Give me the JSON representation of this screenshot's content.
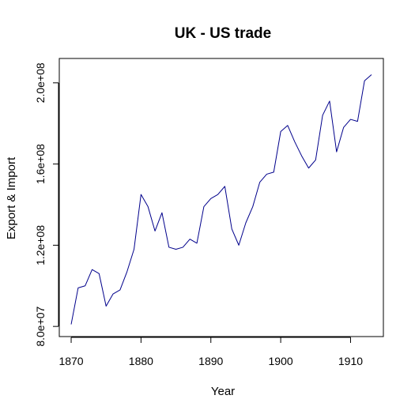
{
  "chart_data": {
    "type": "line",
    "title": "UK - US trade",
    "xlabel": "Year",
    "ylabel": "Export & Import",
    "xlim": [
      1868.3,
      1914.7
    ],
    "ylim": [
      75000000,
      212000000
    ],
    "x_ticks": [
      1870,
      1880,
      1890,
      1900,
      1910
    ],
    "x_tick_labels": [
      "1870",
      "1880",
      "1890",
      "1900",
      "1910"
    ],
    "y_ticks": [
      80000000,
      120000000,
      160000000,
      200000000
    ],
    "y_tick_labels": [
      "8.0e+07",
      "1.2e+08",
      "1.6e+08",
      "2.0e+08"
    ],
    "grid": false,
    "legend": "none",
    "series": [
      {
        "color": "#00008b",
        "x": [
          1870,
          1871,
          1872,
          1873,
          1874,
          1875,
          1876,
          1877,
          1878,
          1879,
          1880,
          1881,
          1882,
          1883,
          1884,
          1885,
          1886,
          1887,
          1888,
          1889,
          1890,
          1891,
          1892,
          1893,
          1894,
          1895,
          1896,
          1897,
          1898,
          1899,
          1900,
          1901,
          1902,
          1903,
          1904,
          1905,
          1906,
          1907,
          1908,
          1909,
          1910,
          1911,
          1912,
          1913
        ],
        "values": [
          81000000,
          99000000,
          100000000,
          108000000,
          106000000,
          90000000,
          96000000,
          98000000,
          107000000,
          118000000,
          145000000,
          139000000,
          127000000,
          136000000,
          119000000,
          118000000,
          119000000,
          123000000,
          121000000,
          139000000,
          143000000,
          145000000,
          149000000,
          128000000,
          120000000,
          131000000,
          139000000,
          151000000,
          155000000,
          156000000,
          176000000,
          179000000,
          171000000,
          164000000,
          158000000,
          162000000,
          184000000,
          191000000,
          166000000,
          178000000,
          182000000,
          181000000,
          201000000,
          204000000
        ]
      }
    ]
  }
}
